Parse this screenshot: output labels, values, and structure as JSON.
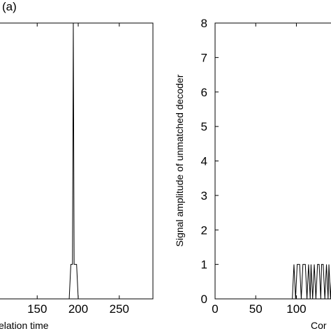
{
  "panel_tag": "(a)",
  "chart_data": [
    {
      "type": "line",
      "xlabel": "Correlation time",
      "xlabel_visible": "elation time",
      "ylabel": "",
      "xlim": [
        103,
        291
      ],
      "ylim": [
        0,
        8
      ],
      "x_ticks": [
        150,
        200,
        250
      ],
      "x_tick_labels": [
        "150",
        "200",
        "250"
      ],
      "series": [
        {
          "x": [
            150,
            189,
            191,
            193,
            194,
            195,
            196,
            198,
            200,
            291
          ],
          "y": [
            0,
            0,
            1,
            1,
            8,
            1,
            1,
            1,
            0,
            0
          ]
        }
      ]
    },
    {
      "type": "line",
      "xlabel": "Correlation time",
      "xlabel_visible": "Cor",
      "ylabel": "Signal amplitude of unmatched decoder",
      "xlim": [
        0,
        146
      ],
      "ylim": [
        0,
        8
      ],
      "x_ticks": [
        0,
        50,
        100
      ],
      "x_tick_labels": [
        "0",
        "50",
        "100"
      ],
      "y_ticks": [
        0,
        1,
        2,
        3,
        4,
        5,
        6,
        7,
        8
      ],
      "y_tick_labels": [
        "0",
        "1",
        "2",
        "3",
        "4",
        "5",
        "6",
        "7",
        "8"
      ],
      "series": [
        {
          "x": [
            0,
            95,
            97,
            99,
            101,
            103,
            104,
            106,
            108,
            110,
            111,
            113,
            115,
            117,
            118,
            120,
            122,
            124,
            126,
            128,
            130,
            131,
            133,
            135,
            137,
            139,
            140,
            142,
            144,
            146
          ],
          "y": [
            0,
            0,
            1,
            0,
            1,
            1,
            1,
            0,
            1,
            1,
            1,
            0,
            1,
            0,
            1,
            0,
            1,
            0,
            1,
            1,
            0,
            1,
            1,
            0,
            1,
            0,
            1,
            0,
            1,
            0
          ]
        }
      ]
    }
  ]
}
